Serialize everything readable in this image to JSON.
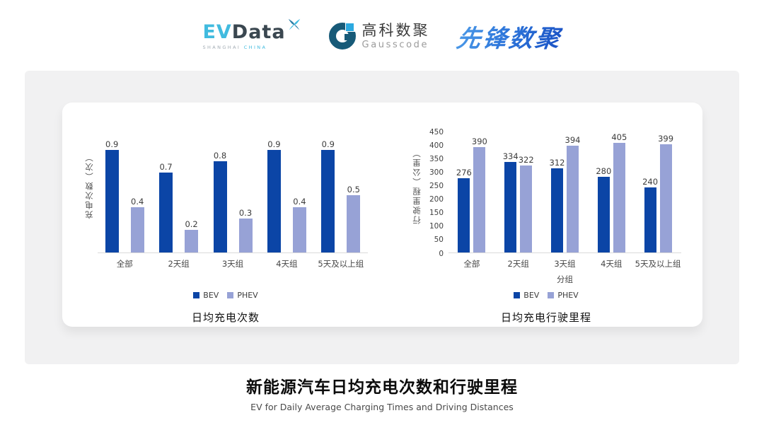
{
  "header": {
    "evdata": {
      "ev": "EV",
      "data": "Data",
      "sub_left": "SHANGHAI",
      "sub_right": "CHINA"
    },
    "gausscode": {
      "cn": "高科数聚",
      "en": "Gausscode"
    },
    "xianfeng": {
      "text": "先锋数聚"
    }
  },
  "colors": {
    "bev": "#0B45A6",
    "phev": "#97A2D6",
    "accent_cyan": "#41BBDF",
    "navy": "#3A4750"
  },
  "chart_data": [
    {
      "type": "bar",
      "title": "日均充电次数",
      "ylabel": "充电次数（次）",
      "xlabel": "",
      "categories": [
        "全部",
        "2天组",
        "3天组",
        "4天组",
        "5天及以上组"
      ],
      "series": [
        {
          "name": "BEV",
          "color": "#0B45A6",
          "values": [
            0.9,
            0.7,
            0.8,
            0.9,
            0.9
          ]
        },
        {
          "name": "PHEV",
          "color": "#97A2D6",
          "values": [
            0.4,
            0.2,
            0.3,
            0.4,
            0.5
          ]
        }
      ],
      "ylim": [
        0,
        1.0
      ],
      "yticks": [],
      "grid": false,
      "legend_position": "bottom",
      "show_value_labels": true
    },
    {
      "type": "bar",
      "title": "日均充电行驶里程",
      "ylabel": "行驶里程（公里）",
      "xlabel": "分组",
      "categories": [
        "全部",
        "2天组",
        "3天组",
        "4天组",
        "5天及以上组"
      ],
      "series": [
        {
          "name": "BEV",
          "color": "#0B45A6",
          "values": [
            276,
            334,
            312,
            280,
            240
          ]
        },
        {
          "name": "PHEV",
          "color": "#97A2D6",
          "values": [
            390,
            322,
            394,
            405,
            399
          ]
        }
      ],
      "ylim": [
        0,
        450
      ],
      "yticks": [
        0,
        50,
        100,
        150,
        200,
        250,
        300,
        350,
        400,
        450
      ],
      "grid": false,
      "legend_position": "bottom",
      "show_value_labels": true
    }
  ],
  "caption": {
    "title_cn": "新能源汽车日均充电次数和行驶里程",
    "title_en": "EV for Daily Average Charging Times and Driving Distances"
  }
}
